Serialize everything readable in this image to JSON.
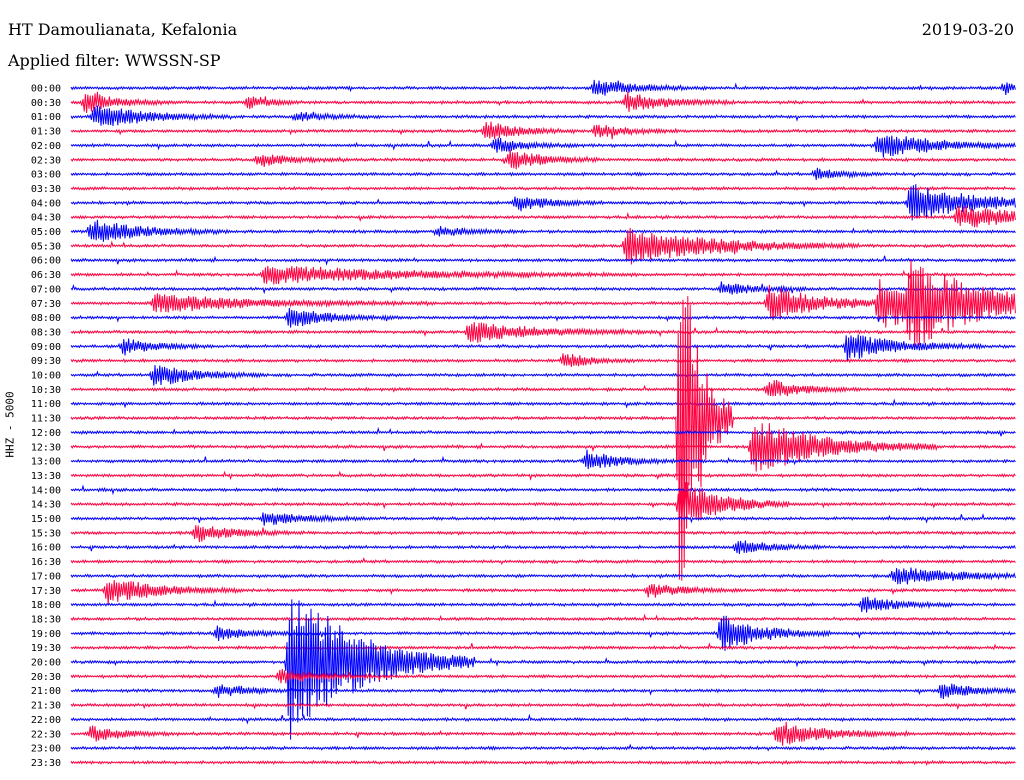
{
  "header": {
    "station": "HT Damoulianata, Kefalonia",
    "date": "2019-03-20",
    "filter": "Applied filter: WWSSN-SP"
  },
  "chart_data": {
    "type": "line",
    "ylabel": "HHZ - 5000",
    "colors": {
      "even_row": "#0000ff",
      "odd_row": "#ff0040"
    },
    "rows": [
      "00:00",
      "00:30",
      "01:00",
      "01:30",
      "02:00",
      "02:30",
      "03:00",
      "03:30",
      "04:00",
      "04:30",
      "05:00",
      "05:30",
      "06:00",
      "06:30",
      "07:00",
      "07:30",
      "08:00",
      "08:30",
      "09:00",
      "09:30",
      "10:00",
      "10:30",
      "11:00",
      "11:30",
      "12:00",
      "12:30",
      "13:00",
      "13:30",
      "14:00",
      "14:30",
      "15:00",
      "15:30",
      "16:00",
      "16:30",
      "17:00",
      "17:30",
      "18:00",
      "18:30",
      "19:00",
      "19:30",
      "20:00",
      "20:30",
      "21:00",
      "21:30",
      "22:00",
      "22:30",
      "23:00",
      "23:30"
    ],
    "time_axis_minutes": [
      0,
      30
    ],
    "events": [
      {
        "row": "00:00",
        "minute": 16.5,
        "amplitude": 10,
        "duration": 1.2
      },
      {
        "row": "00:00",
        "minute": 29.5,
        "amplitude": 11,
        "duration": 0.3
      },
      {
        "row": "00:30",
        "minute": 0.3,
        "amplitude": 12,
        "duration": 1.0
      },
      {
        "row": "00:30",
        "minute": 5.5,
        "amplitude": 10,
        "duration": 0.6
      },
      {
        "row": "00:30",
        "minute": 17.5,
        "amplitude": 12,
        "duration": 1.2
      },
      {
        "row": "01:00",
        "minute": 0.6,
        "amplitude": 14,
        "duration": 1.5
      },
      {
        "row": "01:00",
        "minute": 7.0,
        "amplitude": 5,
        "duration": 1.0
      },
      {
        "row": "01:30",
        "minute": 13.0,
        "amplitude": 12,
        "duration": 1.0
      },
      {
        "row": "01:30",
        "minute": 16.5,
        "amplitude": 8,
        "duration": 1.0
      },
      {
        "row": "02:00",
        "minute": 13.3,
        "amplitude": 9,
        "duration": 1.0
      },
      {
        "row": "02:00",
        "minute": 25.5,
        "amplitude": 16,
        "duration": 1.6
      },
      {
        "row": "02:30",
        "minute": 5.8,
        "amplitude": 8,
        "duration": 1.0
      },
      {
        "row": "02:30",
        "minute": 13.8,
        "amplitude": 12,
        "duration": 1.0
      },
      {
        "row": "03:00",
        "minute": 23.5,
        "amplitude": 7,
        "duration": 0.8
      },
      {
        "row": "04:00",
        "minute": 14.0,
        "amplitude": 10,
        "duration": 1.0
      },
      {
        "row": "04:00",
        "minute": 26.5,
        "amplitude": 22,
        "duration": 2.0
      },
      {
        "row": "04:30",
        "minute": 28.0,
        "amplitude": 12,
        "duration": 2.5
      },
      {
        "row": "05:00",
        "minute": 0.5,
        "amplitude": 14,
        "duration": 1.5
      },
      {
        "row": "05:00",
        "minute": 11.5,
        "amplitude": 6,
        "duration": 1.0
      },
      {
        "row": "05:30",
        "minute": 17.5,
        "amplitude": 22,
        "duration": 2.5
      },
      {
        "row": "06:30",
        "minute": 6.0,
        "amplitude": 10,
        "duration": 4.0
      },
      {
        "row": "07:00",
        "minute": 20.5,
        "amplitude": 8,
        "duration": 1.0
      },
      {
        "row": "07:30",
        "minute": 22.0,
        "amplitude": 20,
        "duration": 1.6
      },
      {
        "row": "07:30",
        "minute": 25.5,
        "amplitude": 28,
        "duration": 2.0
      },
      {
        "row": "07:30",
        "minute": 26.5,
        "amplitude": 34,
        "duration": 2.2
      },
      {
        "row": "07:30",
        "minute": 2.5,
        "amplitude": 10,
        "duration": 3.0
      },
      {
        "row": "08:00",
        "minute": 6.8,
        "amplitude": 12,
        "duration": 1.2
      },
      {
        "row": "08:30",
        "minute": 12.5,
        "amplitude": 12,
        "duration": 2.0
      },
      {
        "row": "09:00",
        "minute": 1.5,
        "amplitude": 10,
        "duration": 1.0
      },
      {
        "row": "09:00",
        "minute": 24.5,
        "amplitude": 16,
        "duration": 1.5
      },
      {
        "row": "09:30",
        "minute": 15.5,
        "amplitude": 10,
        "duration": 0.8
      },
      {
        "row": "10:00",
        "minute": 2.5,
        "amplitude": 14,
        "duration": 1.2
      },
      {
        "row": "10:30",
        "minute": 22.0,
        "amplitude": 12,
        "duration": 1.0
      },
      {
        "row": "12:30",
        "minute": 21.5,
        "amplitude": 32,
        "duration": 2.0
      },
      {
        "row": "13:00",
        "minute": 16.2,
        "amplitude": 12,
        "duration": 1.0
      },
      {
        "row": "14:30",
        "minute": 19.2,
        "amplitude": 30,
        "duration": 1.2
      },
      {
        "row": "15:00",
        "minute": 6.0,
        "amplitude": 8,
        "duration": 1.2
      },
      {
        "row": "15:30",
        "minute": 3.8,
        "amplitude": 10,
        "duration": 1.2
      },
      {
        "row": "16:00",
        "minute": 21.0,
        "amplitude": 9,
        "duration": 1.0
      },
      {
        "row": "17:00",
        "minute": 26.0,
        "amplitude": 10,
        "duration": 2.0
      },
      {
        "row": "17:30",
        "minute": 1.0,
        "amplitude": 16,
        "duration": 1.5
      },
      {
        "row": "17:30",
        "minute": 18.2,
        "amplitude": 9,
        "duration": 1.0
      },
      {
        "row": "18:00",
        "minute": 25.0,
        "amplitude": 10,
        "duration": 1.0
      },
      {
        "row": "19:00",
        "minute": 4.5,
        "amplitude": 9,
        "duration": 1.0
      },
      {
        "row": "19:00",
        "minute": 20.5,
        "amplitude": 22,
        "duration": 1.2
      },
      {
        "row": "20:30",
        "minute": 6.5,
        "amplitude": 9,
        "duration": 1.0
      },
      {
        "row": "21:00",
        "minute": 4.5,
        "amplitude": 8,
        "duration": 1.0
      },
      {
        "row": "21:00",
        "minute": 27.5,
        "amplitude": 10,
        "duration": 1.0
      },
      {
        "row": "22:30",
        "minute": 0.5,
        "amplitude": 9,
        "duration": 1.0
      },
      {
        "row": "22:30",
        "minute": 22.3,
        "amplitude": 14,
        "duration": 1.5
      },
      {
        "row": "20:00",
        "minute": 6.8,
        "amplitude": 90,
        "duration": 2.0
      },
      {
        "row": "11:30",
        "minute": 19.2,
        "amplitude": 260,
        "duration": 0.6
      }
    ]
  }
}
